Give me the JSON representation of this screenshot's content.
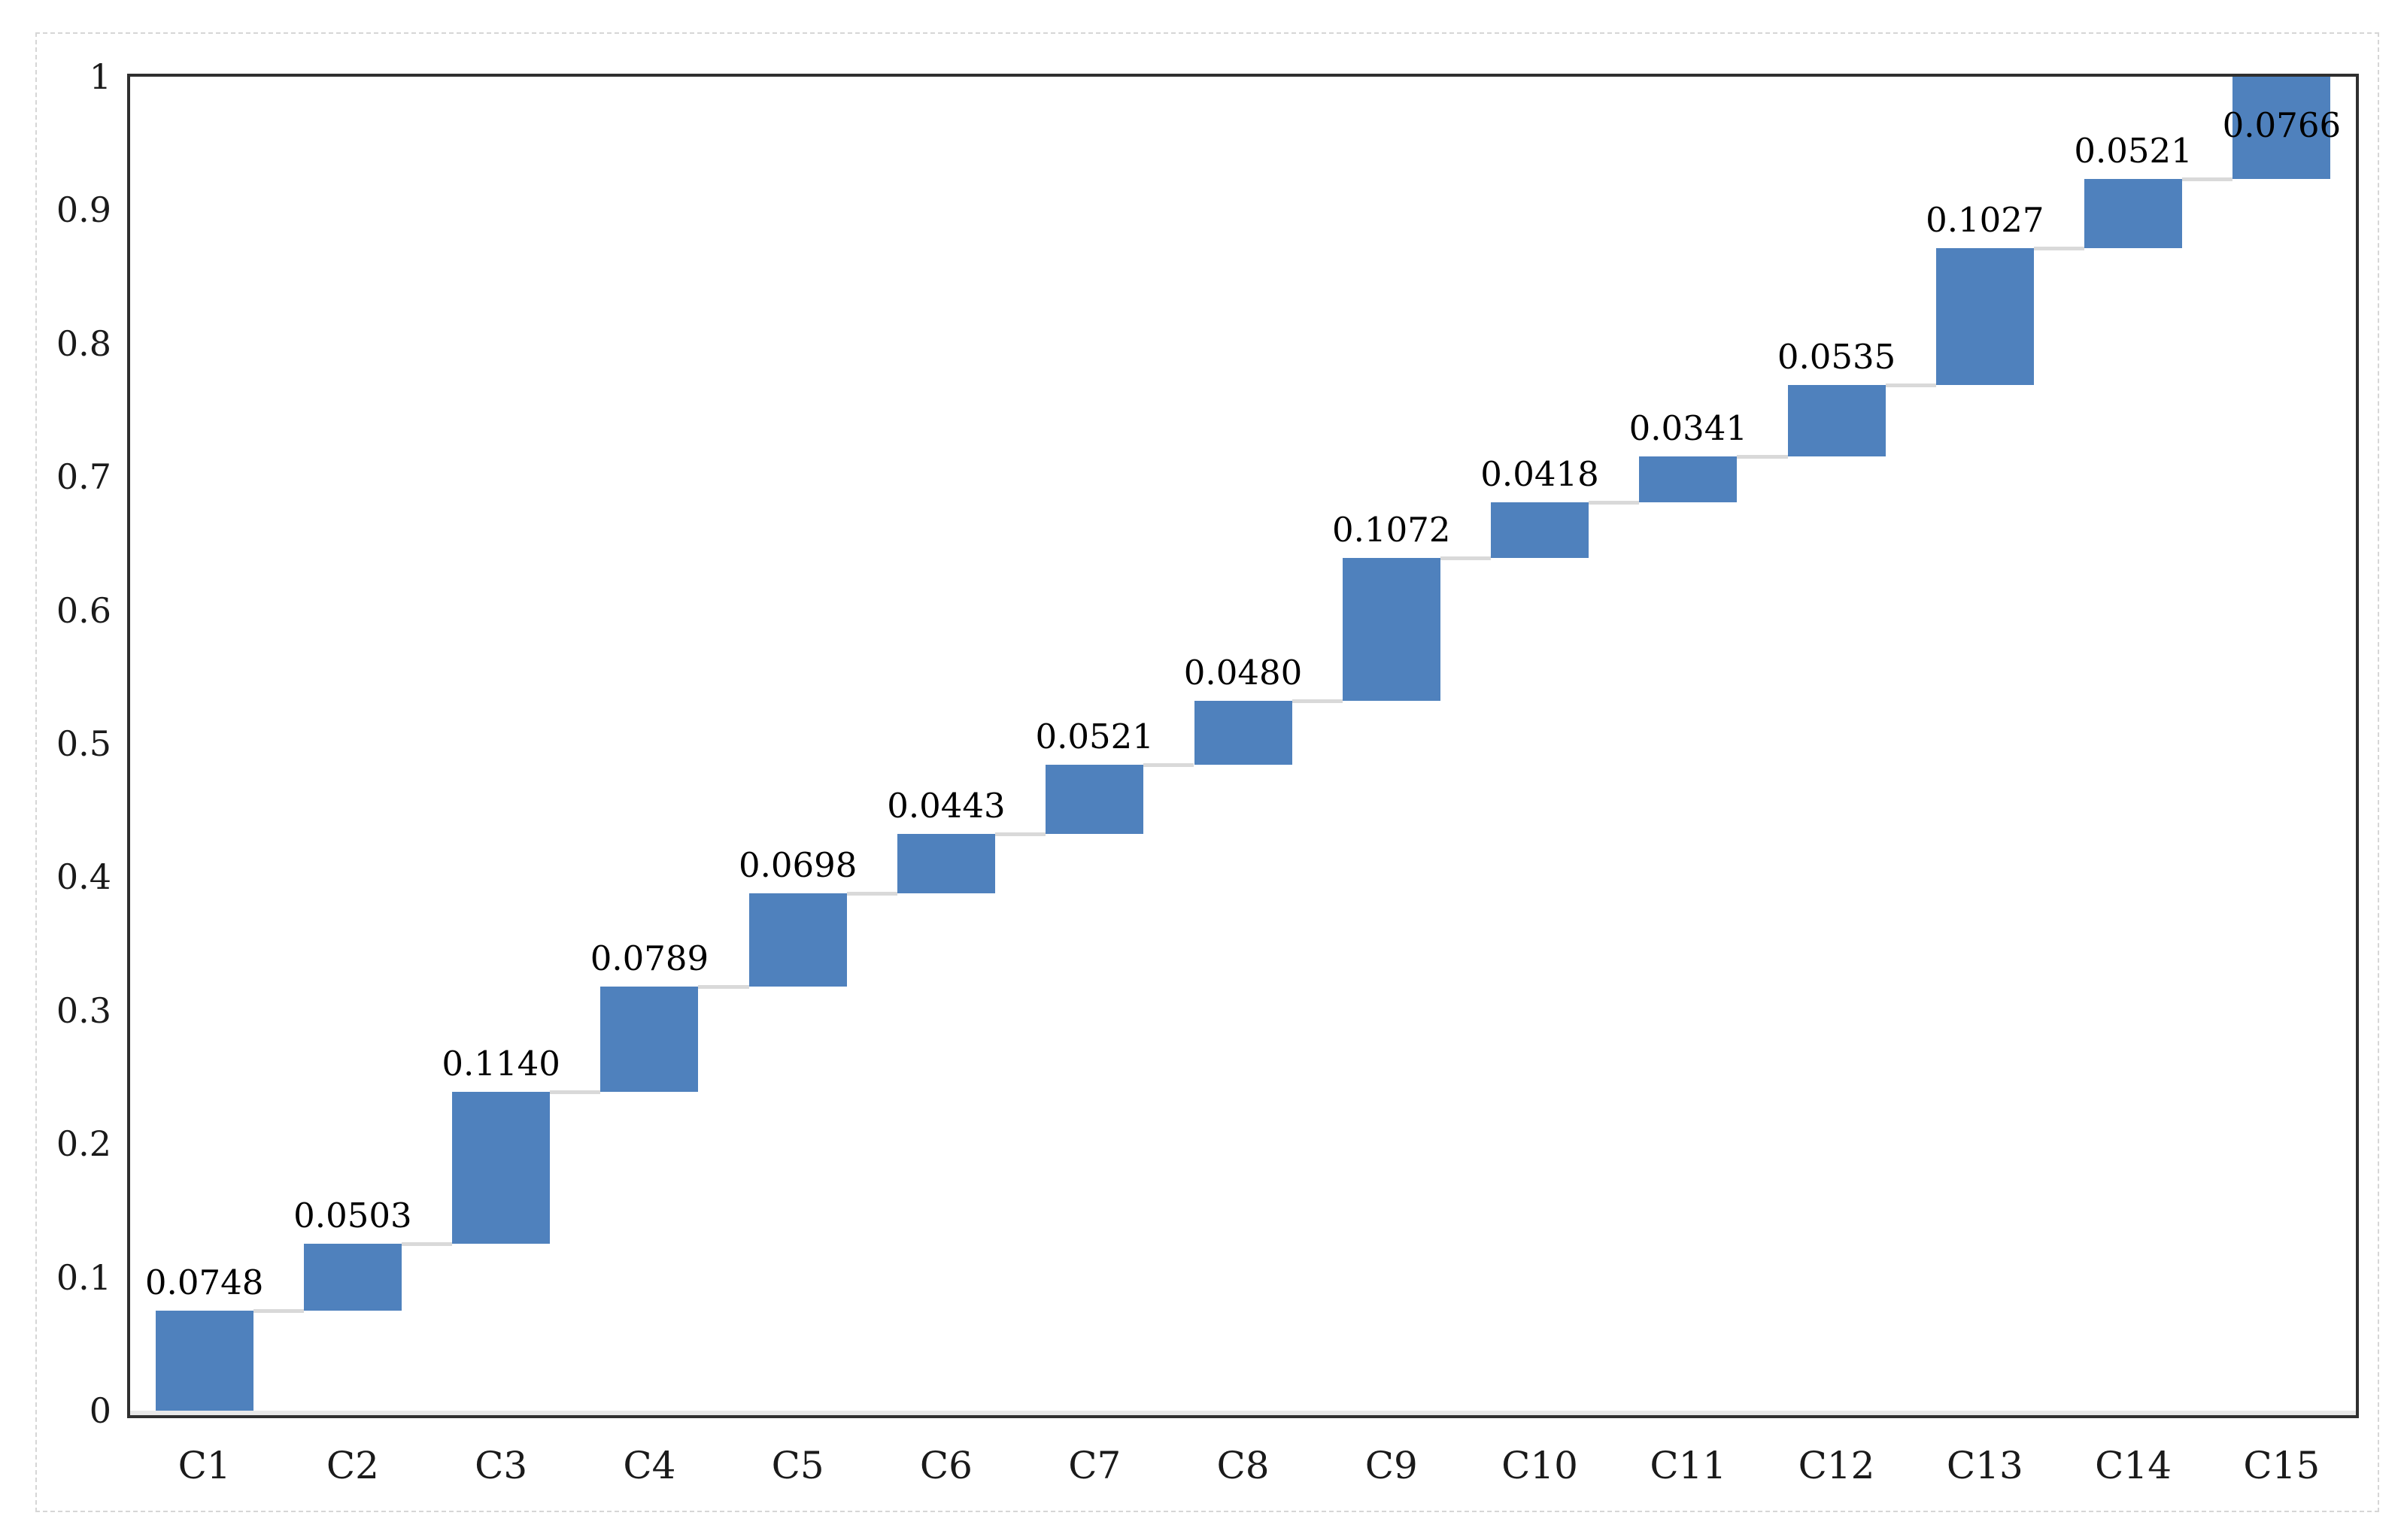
{
  "figure": {
    "background": "#ffffff",
    "outer_border_color": "#d6d6d6"
  },
  "chart_data": {
    "type": "bar",
    "subtype": "waterfall-cumulative",
    "title": "",
    "xlabel": "",
    "ylabel": "",
    "categories": [
      "C1",
      "C2",
      "C3",
      "C4",
      "C5",
      "C6",
      "C7",
      "C8",
      "C9",
      "C10",
      "C11",
      "C12",
      "C13",
      "C14",
      "C15"
    ],
    "values": [
      0.0748,
      0.0503,
      0.114,
      0.0789,
      0.0698,
      0.0443,
      0.0521,
      0.048,
      0.1072,
      0.0418,
      0.0341,
      0.0535,
      0.1027,
      0.0521,
      0.0766
    ],
    "value_labels": [
      "0.0748",
      "0.0503",
      "0.1140",
      "0.0789",
      "0.0698",
      "0.0443",
      "0.0521",
      "0.0480",
      "0.1072",
      "0.0418",
      "0.0341",
      "0.0535",
      "0.1027",
      "0.0521",
      "0.0766"
    ],
    "ylim": [
      0,
      1
    ],
    "y_ticks": [
      "1",
      "0.9",
      "0.8",
      "0.7",
      "0.6",
      "0.5",
      "0.4",
      "0.3",
      "0.2",
      "0.1",
      "0"
    ],
    "grid": false,
    "legend": false,
    "bar_color": "#4f81bd",
    "connector_color": "#d9d9d9",
    "axis_box_color": "#2f2f2f",
    "label_color": "#000000",
    "tick_label_color": "#1a1a1a"
  }
}
